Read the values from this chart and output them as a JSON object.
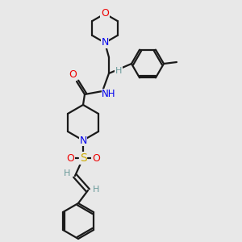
{
  "bg": "#e8e8e8",
  "bond_color": "#1a1a1a",
  "N_color": "#0000ee",
  "O_color": "#ee0000",
  "S_color": "#ccaa00",
  "H_color": "#6a9a9a",
  "lw": 1.6,
  "figsize": [
    3.0,
    3.0
  ],
  "dpi": 100,
  "xlim": [
    0,
    300
  ],
  "ylim": [
    0,
    300
  ]
}
